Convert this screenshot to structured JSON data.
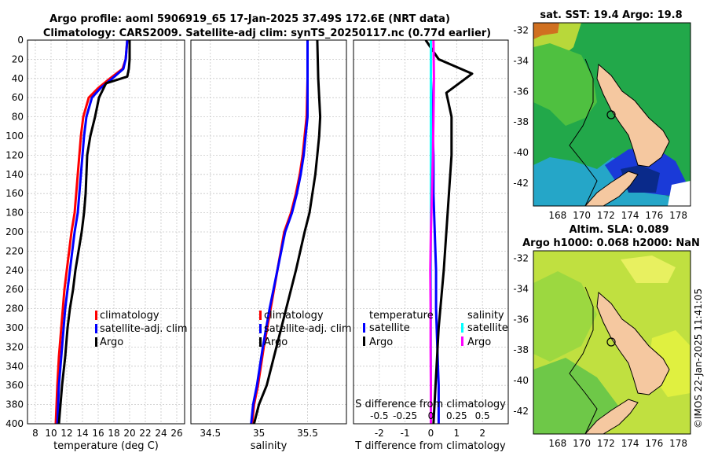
{
  "header": {
    "title_line1": "Argo profile: aoml 5906919_65 17-Jan-2025 37.49S 172.6E (NRT data)",
    "title_line2": "Climatology: CARS2009. Satellite-adj clim: synTS_20250117.nc (0.77d earlier)"
  },
  "depth_ticks": [
    0,
    20,
    40,
    60,
    80,
    100,
    120,
    140,
    160,
    180,
    200,
    220,
    240,
    260,
    280,
    300,
    320,
    340,
    360,
    380,
    400
  ],
  "colors": {
    "climatology": "#ff0000",
    "satellite": "#0000ff",
    "argo": "#000000",
    "sat_salinity": "#00ffff",
    "argo_salinity": "#ff00ff"
  },
  "chart_data": [
    {
      "id": "temperature",
      "type": "line",
      "xlabel": "temperature (deg C)",
      "ylabel": "",
      "xlim": [
        7,
        27
      ],
      "ylim": [
        400,
        0
      ],
      "xticks": [
        8,
        10,
        12,
        14,
        16,
        18,
        20,
        22,
        24,
        26
      ],
      "grid": true,
      "legend": {
        "position": "lower-right",
        "entries": [
          "climatology",
          "satellite-adj. clim",
          "Argo"
        ]
      },
      "series": [
        {
          "name": "climatology",
          "color": "#ff0000",
          "x": [
            19.7,
            19.5,
            19.1,
            17.5,
            16.0,
            14.8,
            14.1,
            13.8,
            13.6,
            13.4,
            13.2,
            13.0,
            12.6,
            12.3,
            12.0,
            11.7,
            11.5,
            11.3,
            11.0,
            10.8,
            10.6
          ],
          "y": [
            0,
            20,
            30,
            40,
            50,
            60,
            80,
            100,
            120,
            140,
            160,
            180,
            200,
            220,
            240,
            260,
            280,
            300,
            330,
            360,
            400
          ]
        },
        {
          "name": "satellite-adj. clim",
          "color": "#0000ff",
          "x": [
            19.7,
            19.5,
            19.2,
            17.8,
            16.3,
            15.2,
            14.5,
            14.2,
            14.0,
            13.8,
            13.6,
            13.4,
            13.0,
            12.7,
            12.4,
            12.1,
            11.8,
            11.6,
            11.3,
            11.0,
            10.8
          ],
          "y": [
            0,
            20,
            30,
            40,
            50,
            60,
            80,
            100,
            120,
            140,
            160,
            180,
            200,
            220,
            240,
            260,
            280,
            300,
            330,
            360,
            400
          ]
        },
        {
          "name": "Argo",
          "color": "#000000",
          "x": [
            20.0,
            20.0,
            19.9,
            19.7,
            17.0,
            16.1,
            15.6,
            15.0,
            14.6,
            14.5,
            14.4,
            14.2,
            13.9,
            13.5,
            13.1,
            12.8,
            12.4,
            12.1,
            11.8,
            11.4,
            11.0
          ],
          "y": [
            0,
            20,
            30,
            38,
            45,
            60,
            80,
            100,
            120,
            140,
            160,
            180,
            200,
            220,
            240,
            260,
            280,
            300,
            330,
            360,
            400
          ]
        }
      ]
    },
    {
      "id": "salinity",
      "type": "line",
      "xlabel": "salinity",
      "ylabel": "",
      "xlim": [
        34.3,
        35.9
      ],
      "ylim": [
        400,
        0
      ],
      "xticks": [
        34.5,
        35,
        35.5
      ],
      "grid": true,
      "legend": {
        "position": "lower-right",
        "entries": [
          "climatology",
          "satellite-adj. clim",
          "Argo"
        ]
      },
      "series": [
        {
          "name": "climatology",
          "color": "#ff0000",
          "x": [
            35.5,
            35.5,
            35.49,
            35.47,
            35.45,
            35.42,
            35.38,
            35.33,
            35.26,
            35.19,
            35.12,
            35.05,
            34.99,
            34.95,
            34.93
          ],
          "y": [
            0,
            40,
            80,
            100,
            120,
            140,
            160,
            180,
            200,
            240,
            280,
            320,
            360,
            380,
            400
          ]
        },
        {
          "name": "satellite-adj. clim",
          "color": "#0000ff",
          "x": [
            35.5,
            35.5,
            35.5,
            35.48,
            35.46,
            35.43,
            35.39,
            35.34,
            35.27,
            35.19,
            35.11,
            35.04,
            34.98,
            34.94,
            34.92
          ],
          "y": [
            0,
            40,
            80,
            100,
            120,
            140,
            160,
            180,
            200,
            240,
            280,
            320,
            360,
            380,
            400
          ]
        },
        {
          "name": "Argo",
          "color": "#000000",
          "x": [
            35.6,
            35.61,
            35.63,
            35.62,
            35.6,
            35.58,
            35.55,
            35.52,
            35.47,
            35.38,
            35.28,
            35.18,
            35.08,
            35.0,
            34.95
          ],
          "y": [
            0,
            40,
            80,
            100,
            120,
            140,
            160,
            180,
            200,
            240,
            280,
            320,
            360,
            380,
            400
          ]
        }
      ]
    },
    {
      "id": "differences",
      "type": "line",
      "xlabel": "T difference from climatology",
      "xlabel_top": "S difference from climatology",
      "xlim": [
        -3,
        3
      ],
      "ylim": [
        400,
        0
      ],
      "xticks": [
        -2,
        -1,
        0,
        1,
        2
      ],
      "xticks_top_values": [
        -0.5,
        -0.25,
        0,
        0.25,
        0.5
      ],
      "xticks_top_labels": [
        "-0.5",
        "-0.25",
        "0",
        "0.25",
        "0.5"
      ],
      "grid": true,
      "legend_t": {
        "title": "temperature",
        "entries": [
          "satellite",
          "Argo"
        ]
      },
      "legend_s": {
        "title": "salinity",
        "entries": [
          "satellite",
          "Argo"
        ]
      },
      "series": [
        {
          "name": "T satellite",
          "color": "#0000ff",
          "x": [
            0,
            0,
            0.05,
            0.1,
            0.1,
            0.15,
            0.2,
            0.2,
            0.25,
            0.3,
            0.3
          ],
          "y": [
            0,
            40,
            80,
            120,
            160,
            200,
            240,
            280,
            320,
            360,
            400
          ]
        },
        {
          "name": "T Argo",
          "color": "#000000",
          "x": [
            -0.2,
            0.3,
            1.6,
            0.6,
            0.8,
            0.8,
            0.7,
            0.6,
            0.5,
            0.3,
            0.1
          ],
          "y": [
            0,
            20,
            35,
            55,
            80,
            120,
            160,
            200,
            240,
            300,
            400
          ]
        },
        {
          "name": "S satellite",
          "color": "#00ffff",
          "x": [
            0,
            0,
            0,
            0,
            0,
            0,
            0,
            0,
            0,
            0,
            0
          ],
          "y": [
            0,
            40,
            80,
            120,
            160,
            200,
            240,
            280,
            320,
            360,
            400
          ]
        },
        {
          "name": "S Argo",
          "color": "#ff00ff",
          "x": [
            0.1,
            0.12,
            0.1,
            0.08,
            0.04,
            0.0,
            -0.02,
            -0.01,
            -0.01,
            0.0,
            0.0
          ],
          "y": [
            0,
            40,
            80,
            120,
            160,
            200,
            240,
            280,
            320,
            360,
            400
          ]
        }
      ]
    },
    {
      "id": "sst_map",
      "type": "heatmap",
      "title": "sat. SST: 19.4  Argo: 19.8",
      "xlim": [
        166,
        179
      ],
      "ylim": [
        -43.5,
        -31.5
      ],
      "xticks": [
        168,
        170,
        172,
        174,
        176,
        178
      ],
      "yticks": [
        -32,
        -34,
        -36,
        -38,
        -40,
        -42
      ]
    },
    {
      "id": "sla_map",
      "type": "heatmap",
      "title_line1": "Altim. SLA: 0.089",
      "title_line2": "Argo h1000: 0.068  h2000: NaN",
      "xlim": [
        166,
        179
      ],
      "ylim": [
        -43.5,
        -31.5
      ],
      "xticks": [
        168,
        170,
        172,
        174,
        176,
        178
      ],
      "yticks": [
        -32,
        -34,
        -36,
        -38,
        -40,
        -42
      ]
    }
  ],
  "watermark": "©IMOS 22-Jan-2025 11:41:05"
}
